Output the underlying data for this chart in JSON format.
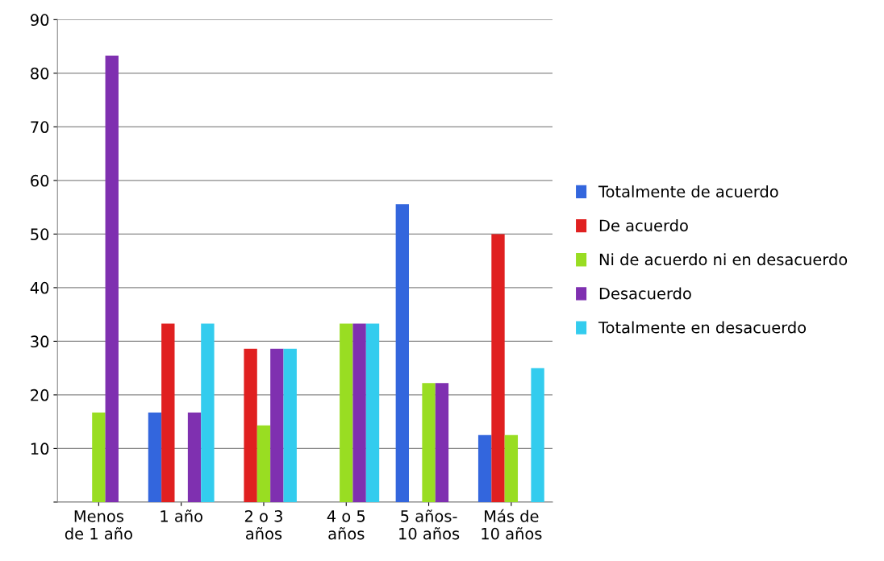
{
  "chart_data": {
    "type": "bar",
    "categories": [
      "Menos\nde 1 año",
      "1 año",
      "2 o 3\naños",
      "4 o 5\naños",
      "5 años-\n10 años",
      "Más de\n10 años"
    ],
    "series": [
      {
        "name": "Totalmente de acuerdo",
        "color": "#3366dd",
        "values": [
          0,
          16.7,
          0,
          0,
          55.6,
          12.5
        ]
      },
      {
        "name": "De acuerdo",
        "color": "#e02020",
        "values": [
          0,
          33.3,
          28.6,
          0,
          0,
          50
        ]
      },
      {
        "name": "Ni de acuerdo ni en desacuerdo",
        "color": "#99dd22",
        "values": [
          16.7,
          0,
          14.3,
          33.3,
          22.2,
          12.5
        ]
      },
      {
        "name": "Desacuerdo",
        "color": "#7f30b0",
        "values": [
          83.3,
          16.7,
          28.6,
          33.3,
          22.2,
          0
        ]
      },
      {
        "name": "Totalmente en desacuerdo",
        "color": "#33ccee",
        "values": [
          0,
          33.3,
          28.6,
          33.3,
          0,
          25
        ]
      }
    ],
    "ylim": [
      0,
      90
    ],
    "yticks": [
      {
        "value": 0,
        "label": null
      },
      10,
      20,
      30,
      40,
      50,
      60,
      70,
      80,
      90
    ],
    "grid": "y",
    "legend": "right"
  }
}
